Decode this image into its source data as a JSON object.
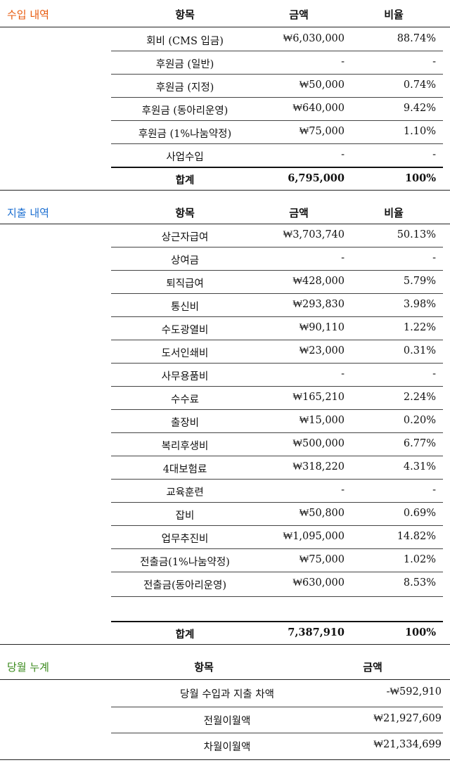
{
  "colors": {
    "income": "#e8590c",
    "expense": "#1c6fd1",
    "cumulative": "#3a8a1c"
  },
  "income": {
    "title": "수입 내역",
    "headers": {
      "item": "항목",
      "amount": "금액",
      "ratio": "비율"
    },
    "rows": [
      {
        "item": "회비 (CMS 입금)",
        "amount": "₩6,030,000",
        "ratio": "88.74%"
      },
      {
        "item": "후원금 (일반)",
        "amount": "-",
        "ratio": "-"
      },
      {
        "item": "후원금 (지정)",
        "amount": "₩50,000",
        "ratio": "0.74%"
      },
      {
        "item": "후원금 (동아리운영)",
        "amount": "₩640,000",
        "ratio": "9.42%"
      },
      {
        "item": "후원금 (1%나눔약정)",
        "amount": "₩75,000",
        "ratio": "1.10%"
      },
      {
        "item": "사업수입",
        "amount": "-",
        "ratio": "-"
      }
    ],
    "total": {
      "item": "합계",
      "amount": "6,795,000",
      "ratio": "100%"
    }
  },
  "expense": {
    "title": "지출 내역",
    "headers": {
      "item": "항목",
      "amount": "금액",
      "ratio": "비율"
    },
    "rows": [
      {
        "item": "상근자급여",
        "amount": "₩3,703,740",
        "ratio": "50.13%"
      },
      {
        "item": "상여금",
        "amount": "-",
        "ratio": "-"
      },
      {
        "item": "퇴직급여",
        "amount": "₩428,000",
        "ratio": "5.79%"
      },
      {
        "item": "통신비",
        "amount": "₩293,830",
        "ratio": "3.98%"
      },
      {
        "item": "수도광열비",
        "amount": "₩90,110",
        "ratio": "1.22%"
      },
      {
        "item": "도서인쇄비",
        "amount": "₩23,000",
        "ratio": "0.31%"
      },
      {
        "item": "사무용품비",
        "amount": "-",
        "ratio": "-"
      },
      {
        "item": "수수료",
        "amount": "₩165,210",
        "ratio": "2.24%"
      },
      {
        "item": "출장비",
        "amount": "₩15,000",
        "ratio": "0.20%"
      },
      {
        "item": "복리후생비",
        "amount": "₩500,000",
        "ratio": "6.77%"
      },
      {
        "item": "4대보험료",
        "amount": "₩318,220",
        "ratio": "4.31%"
      },
      {
        "item": "교육훈련",
        "amount": "-",
        "ratio": "-"
      },
      {
        "item": "잡비",
        "amount": "₩50,800",
        "ratio": "0.69%"
      },
      {
        "item": "업무추진비",
        "amount": "₩1,095,000",
        "ratio": "14.82%"
      },
      {
        "item": "전출금(1%나눔약정)",
        "amount": "₩75,000",
        "ratio": "1.02%"
      },
      {
        "item": "전출금(동아리운영)",
        "amount": "₩630,000",
        "ratio": "8.53%"
      }
    ],
    "total": {
      "item": "합계",
      "amount": "7,387,910",
      "ratio": "100%"
    }
  },
  "cumulative": {
    "title": "당월 누계",
    "headers": {
      "item": "항목",
      "amount": "금액"
    },
    "rows": [
      {
        "item": "당월 수입과 지출 차액",
        "amount": "-₩592,910"
      },
      {
        "item": "전월이월액",
        "amount": "₩21,927,609"
      },
      {
        "item": "차월이월액",
        "amount": "₩21,334,699"
      }
    ]
  }
}
